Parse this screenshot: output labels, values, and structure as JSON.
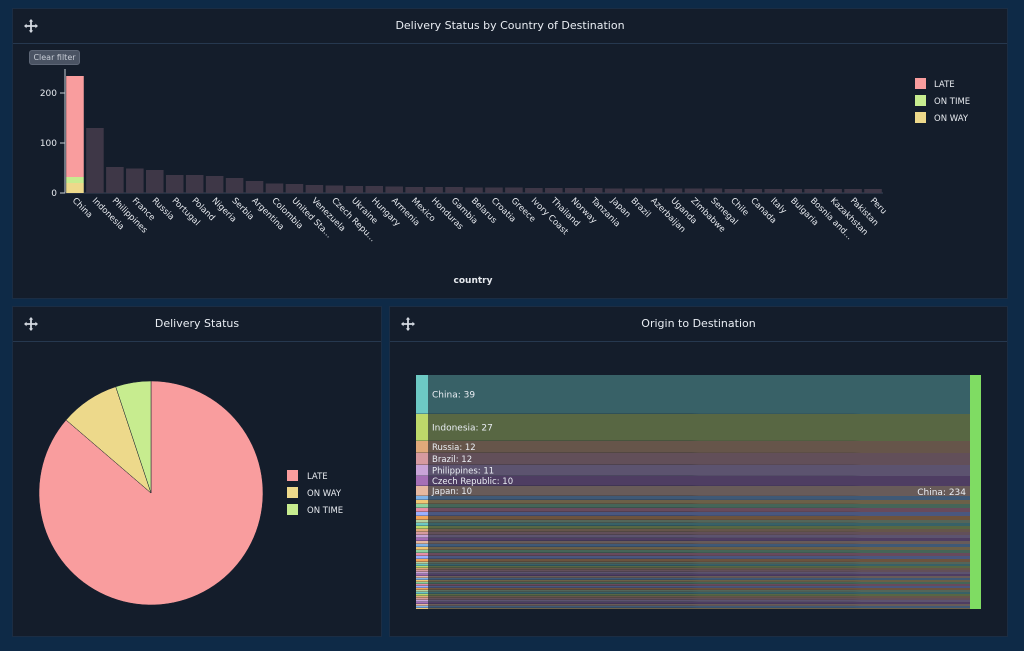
{
  "colors": {
    "late": "#f99d9e",
    "on_time": "#c7ec8f",
    "on_way": "#edd98b",
    "muted_bar": "#3e3747",
    "sankey_node": "#7fdc63"
  },
  "panels": {
    "bar": {
      "title": "Delivery Status by Country of Destination",
      "clear_filter": "Clear filter"
    },
    "pie": {
      "title": "Delivery Status"
    },
    "sankey": {
      "title": "Origin to Destination"
    }
  },
  "icons": {
    "move": "move-arrows-icon"
  },
  "chart_data": [
    {
      "type": "bar",
      "stacked": true,
      "title": "Delivery Status by Country of Destination",
      "xlabel": "country",
      "ylabel": "",
      "ylim": [
        0,
        240
      ],
      "yticks": [
        0,
        100,
        200
      ],
      "categories": [
        "China",
        "Indonesia",
        "Philippines",
        "France",
        "Russia",
        "Portugal",
        "Poland",
        "Nigeria",
        "Serbia",
        "Argentina",
        "Colombia",
        "United Sta...",
        "Venezuela",
        "Czech Repu...",
        "Ukraine",
        "Hungary",
        "Armenia",
        "Mexico",
        "Honduras",
        "Gambia",
        "Belarus",
        "Croatia",
        "Greece",
        "Ivory Coast",
        "Thailand",
        "Norway",
        "Tanzania",
        "Japan",
        "Brazil",
        "Azerbaijan",
        "Uganda",
        "Zimbabwe",
        "Senegal",
        "Chile",
        "Canada",
        "Italy",
        "Bulgaria",
        "Bosnia and...",
        "Kazakhstan",
        "Pakistan",
        "Peru"
      ],
      "highlighted": "China",
      "series": [
        {
          "name": "LATE",
          "values": [
            202,
            130,
            52,
            49,
            46,
            36,
            36,
            34,
            30,
            24,
            19,
            18,
            16,
            15,
            14,
            14,
            13,
            12,
            12,
            12,
            11,
            11,
            11,
            10,
            10,
            10,
            10,
            9,
            9,
            9,
            9,
            9,
            9,
            8,
            8,
            8,
            8,
            8,
            8,
            8,
            8
          ]
        },
        {
          "name": "ON TIME",
          "values": [
            12,
            0,
            0,
            0,
            0,
            0,
            0,
            0,
            0,
            0,
            0,
            0,
            0,
            0,
            0,
            0,
            0,
            0,
            0,
            0,
            0,
            0,
            0,
            0,
            0,
            0,
            0,
            0,
            0,
            0,
            0,
            0,
            0,
            0,
            0,
            0,
            0,
            0,
            0,
            0,
            0
          ]
        },
        {
          "name": "ON WAY",
          "values": [
            20,
            0,
            0,
            0,
            0,
            0,
            0,
            0,
            0,
            0,
            0,
            0,
            0,
            0,
            0,
            0,
            0,
            0,
            0,
            0,
            0,
            0,
            0,
            0,
            0,
            0,
            0,
            0,
            0,
            0,
            0,
            0,
            0,
            0,
            0,
            0,
            0,
            0,
            0,
            0,
            0
          ]
        }
      ],
      "legend": [
        "LATE",
        "ON TIME",
        "ON WAY"
      ],
      "legend_position": "top-right"
    },
    {
      "type": "pie",
      "title": "Delivery Status",
      "slices": [
        {
          "label": "LATE",
          "value": 86.3
        },
        {
          "label": "ON WAY",
          "value": 8.6
        },
        {
          "label": "ON TIME",
          "value": 5.1
        }
      ],
      "legend": [
        "LATE",
        "ON WAY",
        "ON TIME"
      ],
      "legend_position": "right"
    },
    {
      "type": "sankey",
      "title": "Origin to Destination",
      "target": {
        "label": "China: 234",
        "value": 234
      },
      "sources": [
        {
          "label": "China: 39",
          "value": 39
        },
        {
          "label": "Indonesia: 27",
          "value": 27
        },
        {
          "label": "Russia: 12",
          "value": 12
        },
        {
          "label": "Brazil: 12",
          "value": 12
        },
        {
          "label": "Philippines: 11",
          "value": 11
        },
        {
          "label": "Czech Republic: 10",
          "value": 10
        },
        {
          "label": "Japan: 10",
          "value": 10
        }
      ],
      "other_sources_total": 113
    }
  ]
}
